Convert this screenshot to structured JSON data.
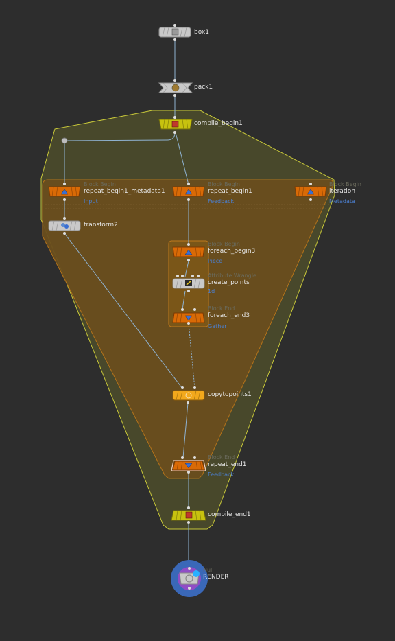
{
  "colors": {
    "background": "#2d2d2d",
    "wire": "#8fb2d1",
    "compile_block_fill": "#4a4a2b",
    "compile_block_border": "#c9c93a",
    "repeat_block_fill": "#6a4e1e",
    "repeat_block_border": "#b5731a",
    "foreach_block_fill": "#7a5618",
    "node_orange": "#d96a06",
    "node_yellow": "#c7c20f",
    "node_gray": "#c9c9c9",
    "node_copy": "#f2a81c",
    "label_sub": "#4b7fd0"
  },
  "nodes": {
    "box1": {
      "name": "box1",
      "icon": "box-icon"
    },
    "pack1": {
      "name": "pack1",
      "icon": "pack-icon"
    },
    "compile_begin1": {
      "name": "compile_begin1",
      "icon": "compile-begin-icon"
    },
    "repeat_begin1_metadata1": {
      "type": "Block Begin",
      "name": "repeat_begin1_metadata1",
      "sub": "Input",
      "icon": "block-begin-icon"
    },
    "repeat_begin1": {
      "type": "Block Begin",
      "name": "repeat_begin1",
      "sub": "Feedback",
      "icon": "block-begin-icon"
    },
    "iteration": {
      "type": "Block Begin",
      "name": "iteration",
      "sub": "Metadata",
      "icon": "block-begin-icon"
    },
    "transform2": {
      "name": "transform2",
      "icon": "transform-icon"
    },
    "foreach_begin3": {
      "type": "Block Begin",
      "name": "foreach_begin3",
      "sub": "Piece",
      "icon": "block-begin-icon"
    },
    "create_points": {
      "type": "Attribute Wrangle",
      "name": "create_points",
      "sub": "1d",
      "icon": "wrangle-icon"
    },
    "foreach_end3": {
      "type": "Block End",
      "name": "foreach_end3",
      "sub": "Gather",
      "icon": "block-end-icon"
    },
    "copytopoints1": {
      "name": "copytopoints1",
      "icon": "copy-icon"
    },
    "repeat_end1": {
      "type": "Block End",
      "name": "repeat_end1",
      "sub": "Feedback",
      "icon": "block-end-icon"
    },
    "compile_end1": {
      "name": "compile_end1",
      "icon": "compile-end-icon"
    },
    "render": {
      "type": "Null",
      "name": "RENDER",
      "icon": "null-icon"
    }
  }
}
